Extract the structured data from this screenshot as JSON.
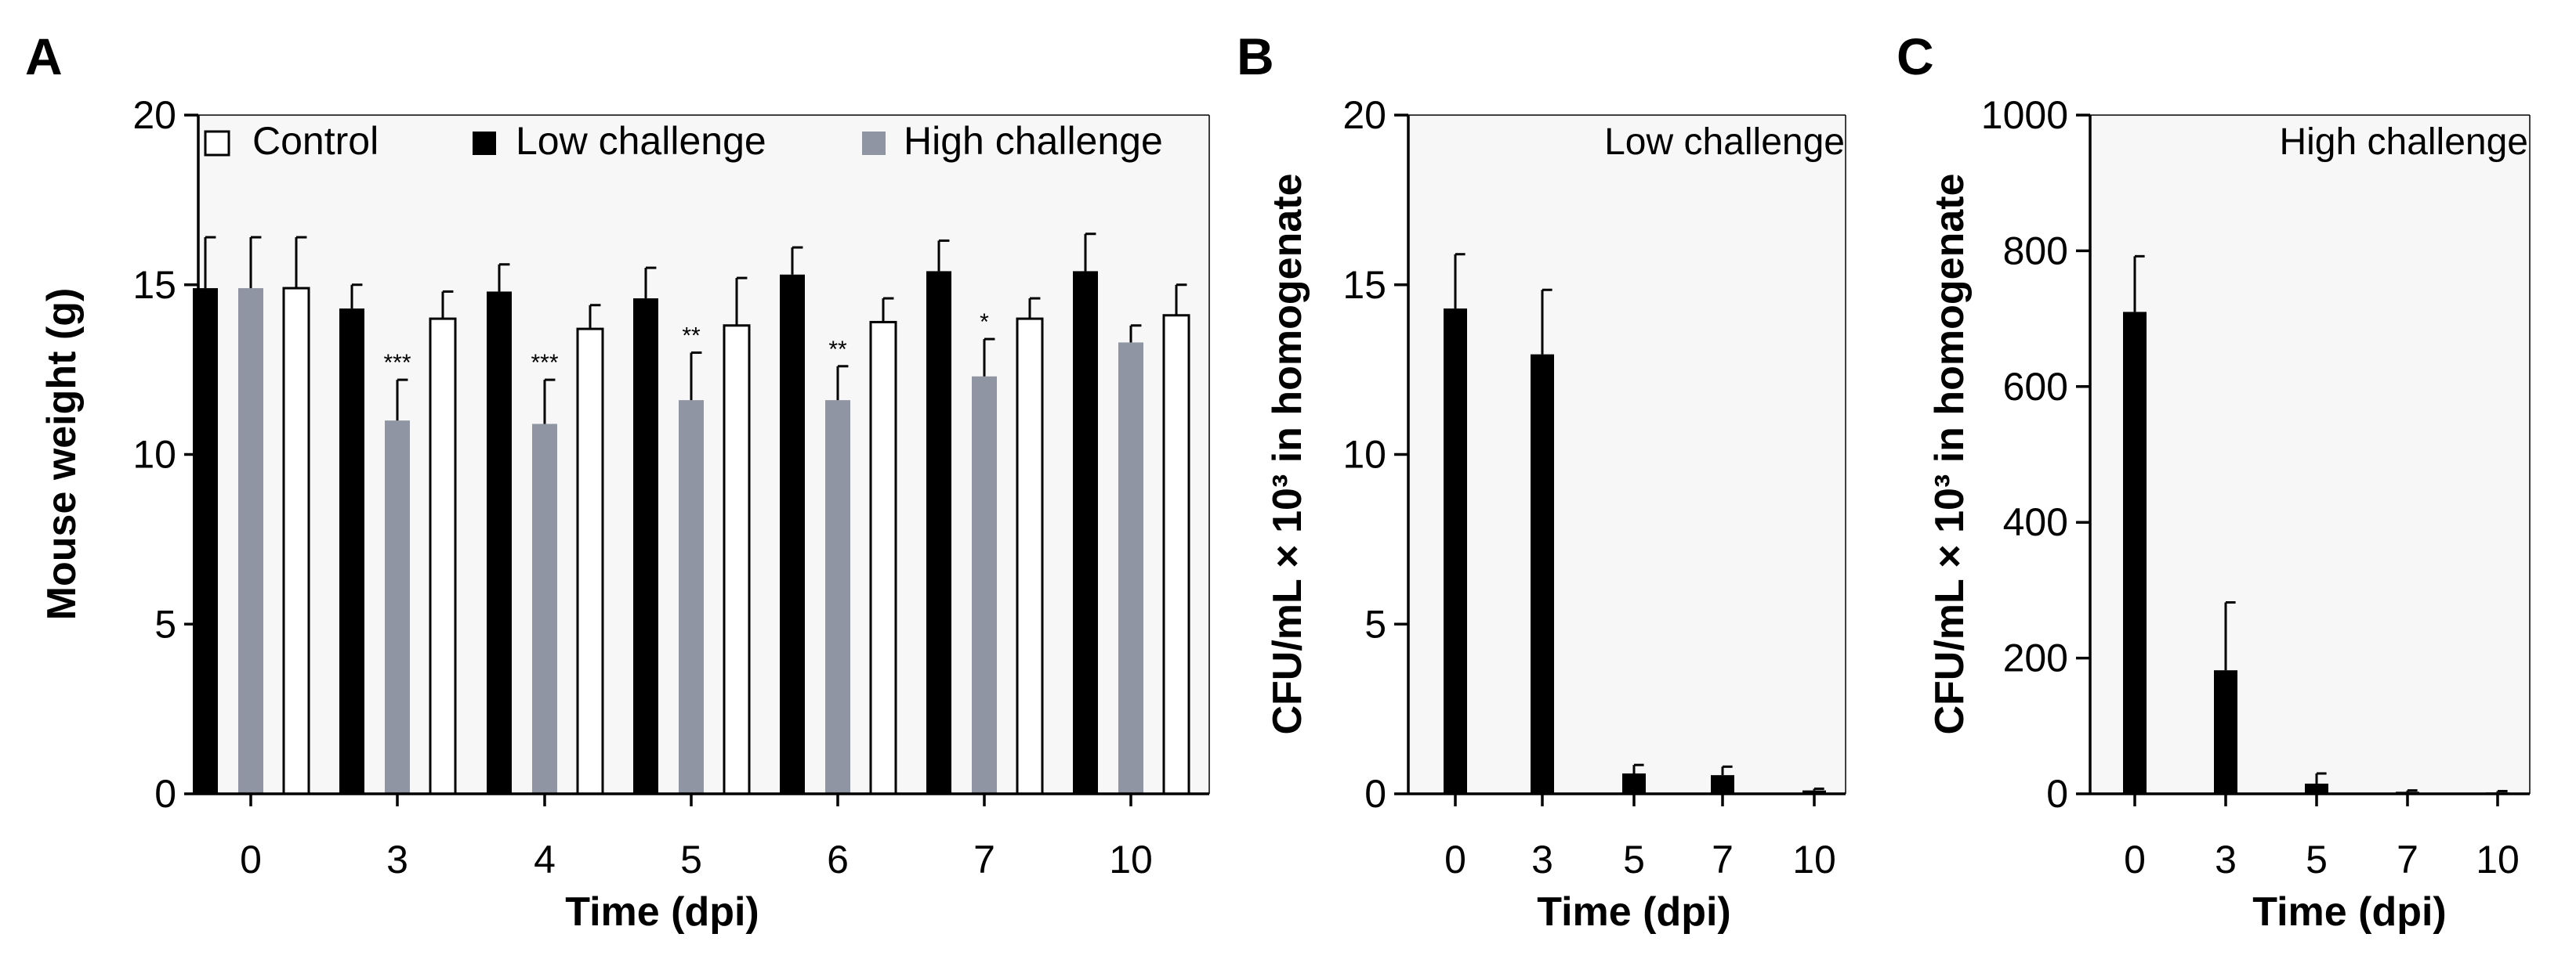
{
  "colors": {
    "low": "#000000",
    "high": "#8f95a3",
    "control": "#ffffff",
    "plot_background": "#f7f7f7",
    "axis": "#000000"
  },
  "chart_data": [
    {
      "panel": "A",
      "type": "bar",
      "title": "",
      "xlabel": "Time (dpi)",
      "ylabel": "Mouse weight (g)",
      "ylim": [
        0,
        20
      ],
      "yticks": [
        "0",
        "5",
        "10",
        "15",
        "20"
      ],
      "categories": [
        "0",
        "3",
        "4",
        "5",
        "6",
        "7",
        "10"
      ],
      "legend": [
        "Control",
        "Low challenge",
        "High challenge"
      ],
      "legend_position": "top",
      "series": [
        {
          "name": "Low challenge",
          "color_key": "low",
          "values": [
            14.9,
            14.3,
            14.8,
            14.6,
            15.3,
            15.4,
            15.4
          ],
          "errors": [
            1.5,
            0.7,
            0.8,
            0.9,
            0.8,
            0.9,
            1.1
          ]
        },
        {
          "name": "High challenge",
          "color_key": "high",
          "values": [
            14.9,
            11.0,
            10.9,
            11.6,
            11.6,
            12.3,
            13.3
          ],
          "errors": [
            1.5,
            1.2,
            1.3,
            1.4,
            1.0,
            1.1,
            0.5
          ]
        },
        {
          "name": "Control",
          "color_key": "control",
          "values": [
            14.9,
            14.0,
            13.7,
            13.8,
            13.9,
            14.0,
            14.1
          ],
          "errors": [
            1.5,
            0.8,
            0.7,
            1.4,
            0.7,
            0.6,
            0.9
          ]
        }
      ],
      "annotations": [
        "",
        "***",
        "***",
        "**",
        "**",
        "*",
        ""
      ]
    },
    {
      "panel": "B",
      "type": "bar",
      "title": "",
      "inset_label": "Low challenge",
      "xlabel": "Time (dpi)",
      "ylabel": "CFU/mL × 10³ in homogenate",
      "ylim": [
        0,
        20
      ],
      "yticks": [
        "0",
        "5",
        "10",
        "15",
        "20"
      ],
      "categories": [
        "0",
        "3",
        "5",
        "7",
        "10"
      ],
      "values": [
        14.3,
        12.95,
        0.6,
        0.55,
        0.1
      ],
      "errors": [
        1.6,
        1.9,
        0.25,
        0.25,
        0.05
      ]
    },
    {
      "panel": "C",
      "type": "bar",
      "title": "",
      "inset_label": "High challenge",
      "xlabel": "Time (dpi)",
      "ylabel": "CFU/mL × 10³ in homogenate",
      "ylim": [
        0,
        1000
      ],
      "yticks": [
        "0",
        "200",
        "400",
        "600",
        "800",
        "1000"
      ],
      "categories": [
        "0",
        "3",
        "5",
        "7",
        "10"
      ],
      "values": [
        710,
        182,
        15,
        3,
        2
      ],
      "errors": [
        82,
        100,
        15,
        2,
        2
      ]
    }
  ]
}
